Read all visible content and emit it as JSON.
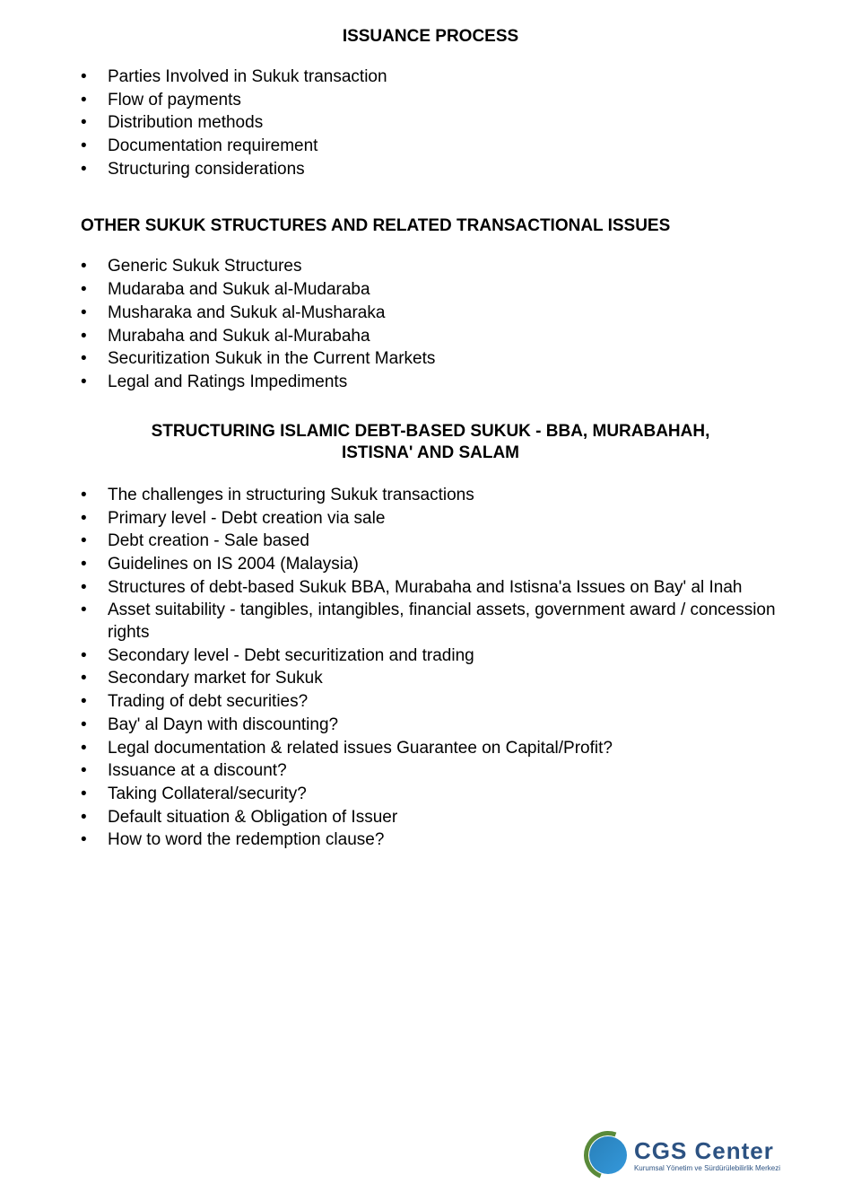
{
  "section1": {
    "heading": "ISSUANCE PROCESS",
    "items": [
      "Parties Involved in Sukuk transaction",
      "Flow of payments",
      "Distribution methods",
      "Documentation requirement",
      "Structuring considerations"
    ]
  },
  "section2": {
    "heading": "OTHER SUKUK STRUCTURES AND RELATED TRANSACTIONAL ISSUES",
    "items": [
      "Generic Sukuk Structures",
      "Mudaraba and Sukuk al-Mudaraba",
      "Musharaka and Sukuk al-Musharaka",
      "Murabaha and Sukuk al-Murabaha",
      "Securitization Sukuk in the Current Markets",
      "Legal and Ratings Impediments"
    ]
  },
  "section3": {
    "heading_line1": "STRUCTURING ISLAMIC DEBT-BASED SUKUK - BBA, MURABAHAH,",
    "heading_line2": "ISTISNA' AND SALAM",
    "items": [
      "The challenges in structuring Sukuk transactions",
      "Primary level - Debt creation via sale",
      "Debt creation - Sale based",
      "Guidelines on IS 2004 (Malaysia)",
      "Structures of debt-based Sukuk BBA, Murabaha and Istisna'a Issues on Bay' al Inah",
      "Asset suitability - tangibles, intangibles, financial assets, government award / concession rights",
      "Secondary level - Debt securitization and trading",
      "Secondary market for Sukuk",
      "Trading of debt securities?",
      "Bay' al Dayn with discounting?",
      "Legal documentation & related issues Guarantee on Capital/Profit?",
      "Issuance at a discount?",
      "Taking Collateral/security?",
      "Default situation & Obligation of Issuer",
      "How to word the redemption clause?"
    ]
  },
  "logo": {
    "title": "CGS Center",
    "subtitle": "Kurumsal Yönetim ve Sürdürülebilirlik Merkezi"
  }
}
